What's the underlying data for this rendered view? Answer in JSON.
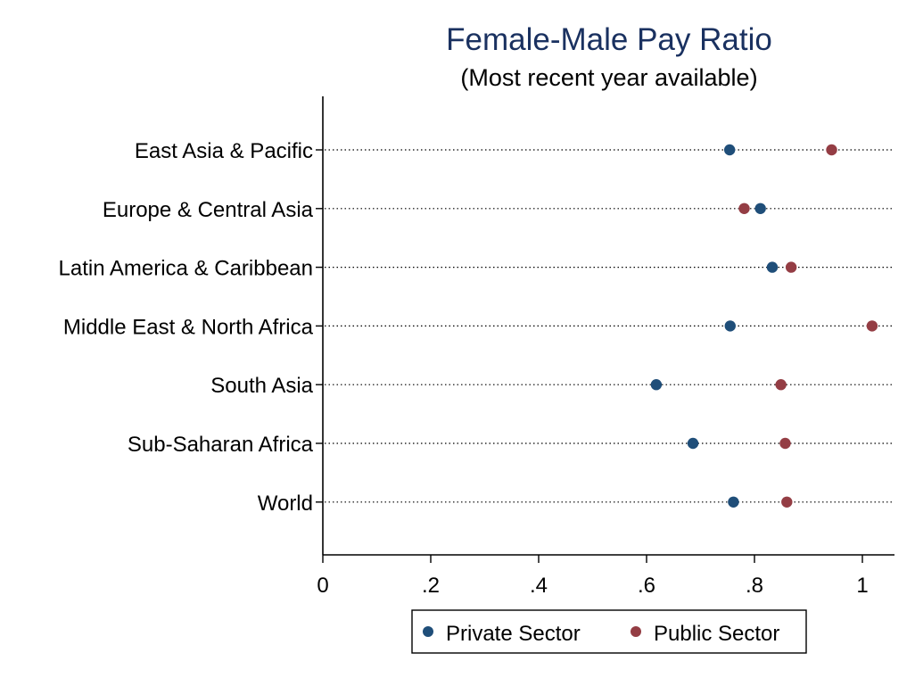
{
  "chart_data": {
    "type": "dot",
    "title": "Female-Male Pay Ratio",
    "subtitle": "(Most recent year available)",
    "categories": [
      "East Asia & Pacific",
      "Europe & Central Asia",
      "Latin America & Caribbean",
      "Middle East & North Africa",
      "South Asia",
      "Sub-Saharan Africa",
      "World"
    ],
    "series": [
      {
        "name": "Private Sector",
        "color": "#1f4e79",
        "values": [
          0.754,
          0.811,
          0.833,
          0.755,
          0.618,
          0.686,
          0.761
        ]
      },
      {
        "name": "Public Sector",
        "color": "#943d44",
        "values": [
          0.943,
          0.781,
          0.868,
          1.018,
          0.849,
          0.857,
          0.86
        ]
      }
    ],
    "xlim": [
      0,
      1.05
    ],
    "xticks": [
      0,
      0.2,
      0.4,
      0.6,
      0.8,
      1
    ],
    "xtick_labels": [
      "0",
      ".2",
      ".4",
      ".6",
      ".8",
      "1"
    ],
    "grid": "dotted horizontal guide per category",
    "legend_position": "bottom-center",
    "title_color": "#1a3160"
  }
}
